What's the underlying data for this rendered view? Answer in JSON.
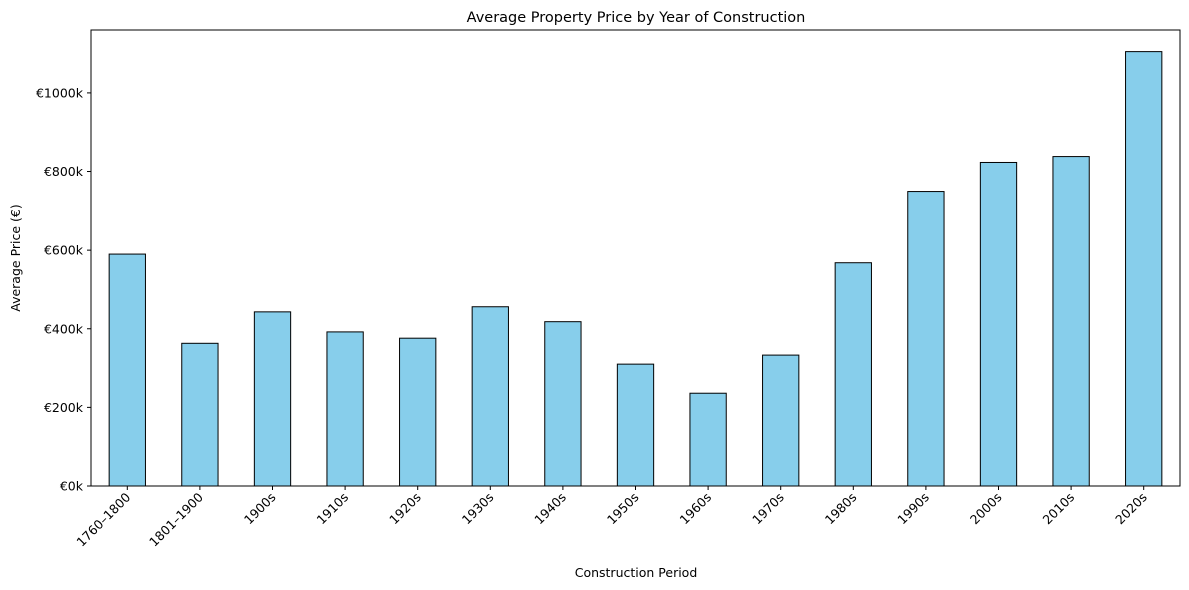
{
  "chart_data": {
    "type": "bar",
    "title": "Average Property Price by Year of Construction",
    "xlabel": "Construction Period",
    "ylabel": "Average Price (€)",
    "categories": [
      "1760–1800",
      "1801–1900",
      "1900s",
      "1910s",
      "1920s",
      "1930s",
      "1940s",
      "1950s",
      "1960s",
      "1970s",
      "1980s",
      "1990s",
      "2000s",
      "2010s",
      "2020s"
    ],
    "values": [
      590,
      363,
      443,
      392,
      376,
      456,
      418,
      310,
      236,
      333,
      568,
      749,
      823,
      838,
      1105
    ],
    "value_unit": "thousand €",
    "ylim": [
      0,
      1160
    ],
    "yticks": [
      0,
      200,
      400,
      600,
      800,
      1000
    ],
    "ytick_labels": [
      "€0k",
      "€200k",
      "€400k",
      "€600k",
      "€800k",
      "€1000k"
    ],
    "bar_color": "#87ceeb",
    "edge_color": "#000000",
    "grid": false,
    "legend": false
  }
}
